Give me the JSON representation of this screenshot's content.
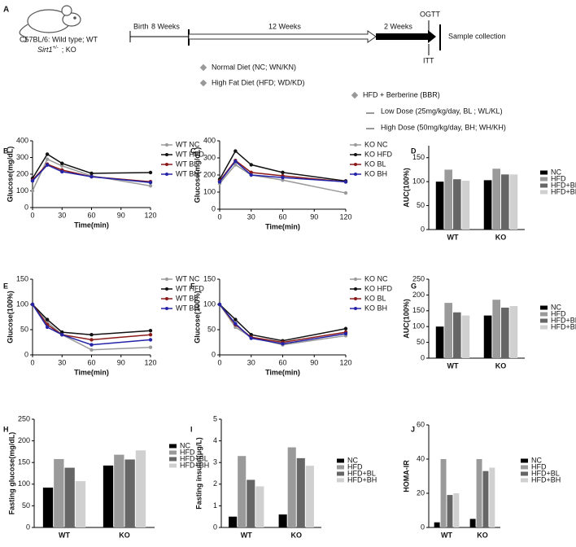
{
  "diagram": {
    "panel_label": "A",
    "strain": "C57BL/6: Wild type; WT",
    "ko_gene": "Sirt1",
    "ko_genotype": "+/-",
    "ko_suffix": "; KO",
    "timeline": {
      "birth": "Birth",
      "phase1": "8 Weeks",
      "phase2": "12 Weeks",
      "phase3": "2 Weeks",
      "ogtt": "OGTT",
      "itt": "ITT",
      "end": "Sample collection"
    },
    "groups": [
      "Normal Diet (NC; WN/KN)",
      "High Fat Diet (HFD; WD/KD)",
      "HFD + Berberine (BBR)"
    ],
    "doses": [
      "Low Dose (25mg/kg/day, BL ; WL/KL)",
      "High Dose (50mg/kg/day, BH; WH/KH)"
    ]
  },
  "chart_data": [
    {
      "type": "line",
      "label": "B",
      "y_label": "Glucose(mg/dL)",
      "x_label": "Time(min)",
      "x": [
        0,
        15,
        30,
        60,
        120
      ],
      "xlim": [
        0,
        120
      ],
      "xticks": [
        0,
        30,
        60,
        90,
        120
      ],
      "ylim": [
        0,
        400
      ],
      "yticks": [
        0,
        100,
        200,
        300,
        400
      ],
      "series": [
        {
          "name": "WT NC",
          "color": "#9a9a9a",
          "values": [
            100,
            290,
            250,
            190,
            130
          ]
        },
        {
          "name": "WT HFD",
          "color": "#111111",
          "values": [
            175,
            320,
            265,
            205,
            210
          ]
        },
        {
          "name": "WT BL",
          "color": "#8b1a1a",
          "values": [
            165,
            260,
            225,
            185,
            155
          ]
        },
        {
          "name": "WT BH",
          "color": "#2424a8",
          "values": [
            160,
            255,
            215,
            185,
            150
          ]
        }
      ]
    },
    {
      "type": "line",
      "label": "C",
      "y_label": "Glucose(mg/dL)",
      "x_label": "Time(min)",
      "x": [
        0,
        15,
        30,
        60,
        120
      ],
      "xlim": [
        0,
        120
      ],
      "xticks": [
        0,
        30,
        60,
        90,
        120
      ],
      "ylim": [
        0,
        400
      ],
      "yticks": [
        0,
        100,
        200,
        300,
        400
      ],
      "series": [
        {
          "name": "KO NC",
          "color": "#9a9a9a",
          "values": [
            150,
            260,
            200,
            170,
            95
          ]
        },
        {
          "name": "KO HFD",
          "color": "#111111",
          "values": [
            175,
            340,
            260,
            215,
            165
          ]
        },
        {
          "name": "KO BL",
          "color": "#8b1a1a",
          "values": [
            165,
            285,
            215,
            195,
            160
          ]
        },
        {
          "name": "KO BH",
          "color": "#2424a8",
          "values": [
            160,
            280,
            200,
            185,
            160
          ]
        }
      ]
    },
    {
      "type": "bar",
      "label": "D",
      "y_label": "AUC(100%)",
      "categories": [
        "WT",
        "KO"
      ],
      "ylim": [
        0,
        175
      ],
      "yticks": [
        0,
        50,
        100,
        150
      ],
      "series": [
        {
          "name": "NC",
          "color": "#000000",
          "values": [
            100,
            103
          ]
        },
        {
          "name": "HFD",
          "color": "#9a9a9a",
          "values": [
            125,
            127
          ]
        },
        {
          "name": "HFD+BL",
          "color": "#666666",
          "values": [
            105,
            115
          ]
        },
        {
          "name": "HFD+BH",
          "color": "#d0d0d0",
          "values": [
            102,
            115
          ]
        }
      ]
    },
    {
      "type": "line",
      "label": "E",
      "y_label": "Glucose(100%)",
      "x_label": "Time(min)",
      "x": [
        0,
        15,
        30,
        60,
        120
      ],
      "xlim": [
        0,
        120
      ],
      "xticks": [
        0,
        30,
        60,
        90,
        120
      ],
      "ylim": [
        0,
        150
      ],
      "yticks": [
        0,
        50,
        100,
        150
      ],
      "series": [
        {
          "name": "WT NC",
          "color": "#9a9a9a",
          "values": [
            100,
            65,
            40,
            10,
            15
          ]
        },
        {
          "name": "WT HFD",
          "color": "#111111",
          "values": [
            100,
            70,
            45,
            40,
            48
          ]
        },
        {
          "name": "WT BL",
          "color": "#8b1a1a",
          "values": [
            100,
            60,
            40,
            30,
            40
          ]
        },
        {
          "name": "WT BH",
          "color": "#2424a8",
          "values": [
            100,
            55,
            40,
            20,
            30
          ]
        }
      ]
    },
    {
      "type": "line",
      "label": "F",
      "y_label": "Glucose(100%)",
      "x_label": "Time(min)",
      "x": [
        0,
        15,
        30,
        60,
        120
      ],
      "xlim": [
        0,
        120
      ],
      "xticks": [
        0,
        30,
        60,
        90,
        120
      ],
      "ylim": [
        0,
        150
      ],
      "yticks": [
        0,
        50,
        100,
        150
      ],
      "series": [
        {
          "name": "KO NC",
          "color": "#9a9a9a",
          "values": [
            100,
            55,
            35,
            20,
            38
          ]
        },
        {
          "name": "KO HFD",
          "color": "#111111",
          "values": [
            100,
            70,
            40,
            28,
            52
          ]
        },
        {
          "name": "KO BL",
          "color": "#8b1a1a",
          "values": [
            100,
            60,
            35,
            25,
            45
          ]
        },
        {
          "name": "KO BH",
          "color": "#2424a8",
          "values": [
            100,
            62,
            33,
            22,
            42
          ]
        }
      ]
    },
    {
      "type": "bar",
      "label": "G",
      "y_label": "AUC(100%)",
      "categories": [
        "WT",
        "KO"
      ],
      "ylim": [
        0,
        250
      ],
      "yticks": [
        0,
        50,
        100,
        150,
        200,
        250
      ],
      "series": [
        {
          "name": "NC",
          "color": "#000000",
          "values": [
            100,
            135
          ]
        },
        {
          "name": "HFD",
          "color": "#9a9a9a",
          "values": [
            175,
            185
          ]
        },
        {
          "name": "HFD+BL",
          "color": "#666666",
          "values": [
            145,
            160
          ]
        },
        {
          "name": "HFD+BH",
          "color": "#d0d0d0",
          "values": [
            135,
            165
          ]
        }
      ]
    },
    {
      "type": "bar",
      "label": "H",
      "y_label": "Fasting glucose(mg/dL)",
      "categories": [
        "WT",
        "KO"
      ],
      "ylim": [
        0,
        250
      ],
      "yticks": [
        0,
        50,
        100,
        150,
        200,
        250
      ],
      "series": [
        {
          "name": "NC",
          "color": "#000000",
          "values": [
            92,
            143
          ]
        },
        {
          "name": "HFD",
          "color": "#9a9a9a",
          "values": [
            158,
            168
          ]
        },
        {
          "name": "HFD+BL",
          "color": "#666666",
          "values": [
            138,
            157
          ]
        },
        {
          "name": "HFD+BH",
          "color": "#d0d0d0",
          "values": [
            107,
            178
          ]
        }
      ]
    },
    {
      "type": "bar",
      "label": "I",
      "y_label": "Fasting insulin(μg/L)",
      "categories": [
        "WT",
        "KO"
      ],
      "ylim": [
        0,
        5
      ],
      "yticks": [
        0,
        1,
        2,
        3,
        4,
        5
      ],
      "series": [
        {
          "name": "NC",
          "color": "#000000",
          "values": [
            0.5,
            0.6
          ]
        },
        {
          "name": "HFD",
          "color": "#9a9a9a",
          "values": [
            3.3,
            3.7
          ]
        },
        {
          "name": "HFD+BL",
          "color": "#666666",
          "values": [
            2.2,
            3.2
          ]
        },
        {
          "name": "HFD+BH",
          "color": "#d0d0d0",
          "values": [
            1.9,
            2.85
          ]
        }
      ]
    },
    {
      "type": "bar",
      "label": "J",
      "y_label": "HOMA-IR",
      "categories": [
        "WT",
        "KO"
      ],
      "ylim": [
        0,
        60
      ],
      "yticks": [
        0,
        20,
        40,
        60
      ],
      "series": [
        {
          "name": "NC",
          "color": "#000000",
          "values": [
            3,
            5
          ]
        },
        {
          "name": "HFD",
          "color": "#9a9a9a",
          "values": [
            40,
            40
          ]
        },
        {
          "name": "HFD+BL",
          "color": "#666666",
          "values": [
            19,
            33
          ]
        },
        {
          "name": "HFD+BH",
          "color": "#d0d0d0",
          "values": [
            20,
            35
          ]
        }
      ]
    }
  ]
}
